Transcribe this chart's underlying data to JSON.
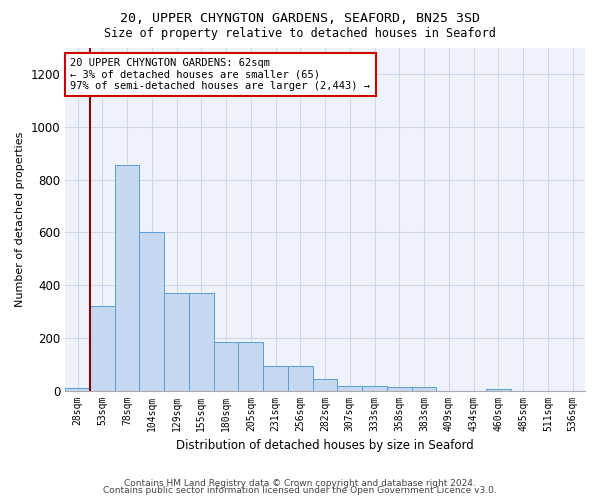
{
  "title1": "20, UPPER CHYNGTON GARDENS, SEAFORD, BN25 3SD",
  "title2": "Size of property relative to detached houses in Seaford",
  "xlabel": "Distribution of detached houses by size in Seaford",
  "ylabel": "Number of detached properties",
  "bar_labels": [
    "28sqm",
    "53sqm",
    "78sqm",
    "104sqm",
    "129sqm",
    "155sqm",
    "180sqm",
    "205sqm",
    "231sqm",
    "256sqm",
    "282sqm",
    "307sqm",
    "333sqm",
    "358sqm",
    "383sqm",
    "409sqm",
    "434sqm",
    "460sqm",
    "485sqm",
    "511sqm",
    "536sqm"
  ],
  "bar_values": [
    10,
    320,
    855,
    600,
    370,
    370,
    185,
    185,
    95,
    95,
    45,
    20,
    20,
    15,
    15,
    0,
    0,
    8,
    0,
    0,
    0
  ],
  "bar_color": "#c5d8f0",
  "bar_edge_color": "#5a9fd4",
  "grid_color": "#d0d8e8",
  "background_color": "#eef2fa",
  "red_line_x": 0.5,
  "annotation_text": "20 UPPER CHYNGTON GARDENS: 62sqm\n← 3% of detached houses are smaller (65)\n97% of semi-detached houses are larger (2,443) →",
  "annotation_box_color": "#ffffff",
  "annotation_box_edge": "#cc0000",
  "footer1": "Contains HM Land Registry data © Crown copyright and database right 2024.",
  "footer2": "Contains public sector information licensed under the Open Government Licence v3.0.",
  "ylim": [
    0,
    1300
  ],
  "yticks": [
    0,
    200,
    400,
    600,
    800,
    1000,
    1200
  ]
}
